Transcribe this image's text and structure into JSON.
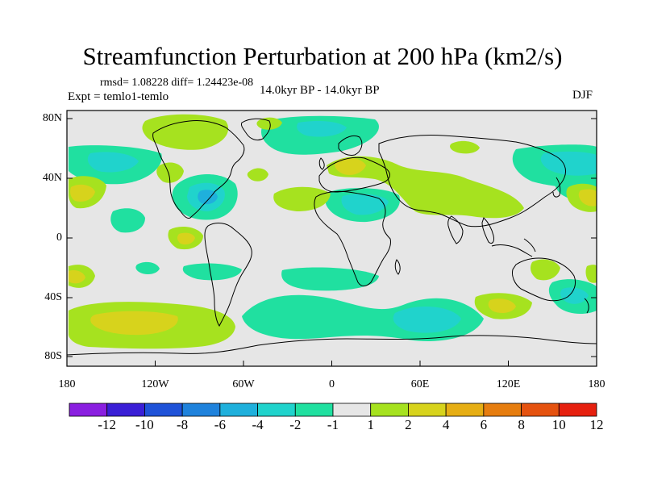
{
  "title": "Streamfunction Perturbation at 200 hPa (km2/s)",
  "stats": "rmsd= 1.08228 diff= 1.24423e-08",
  "experiment": "Expt = temlo1-temlo",
  "period": "14.0kyr BP - 14.0kyr BP",
  "season": "DJF",
  "lat_labels": [
    "80N",
    "40N",
    "0",
    "40S",
    "80S"
  ],
  "lon_labels": [
    "180",
    "120W",
    "60W",
    "0",
    "60E",
    "120E",
    "180"
  ],
  "colorbar": {
    "labels": [
      "-12",
      "-10",
      "-8",
      "-6",
      "-4",
      "-2",
      "-1",
      "1",
      "2",
      "4",
      "6",
      "8",
      "10",
      "12"
    ],
    "colors": [
      "#8a1fe0",
      "#3a1fd6",
      "#1f52d8",
      "#1f82dc",
      "#1fb0dc",
      "#20d3cc",
      "#20e0a0",
      "#e6e6e6",
      "#a6e21f",
      "#d7d31c",
      "#e6ae14",
      "#e67d0f",
      "#e5520f",
      "#e6200f"
    ]
  },
  "map_colors": {
    "background": "#e6e6e6",
    "pos_light": "#a6e21f",
    "pos_mid": "#d7d31c",
    "pos_strong": "#e6ae14",
    "neg_light": "#20e0a0",
    "neg_mid": "#20d3cc",
    "neg_strong": "#1fb0dc",
    "coast": "#000000"
  }
}
